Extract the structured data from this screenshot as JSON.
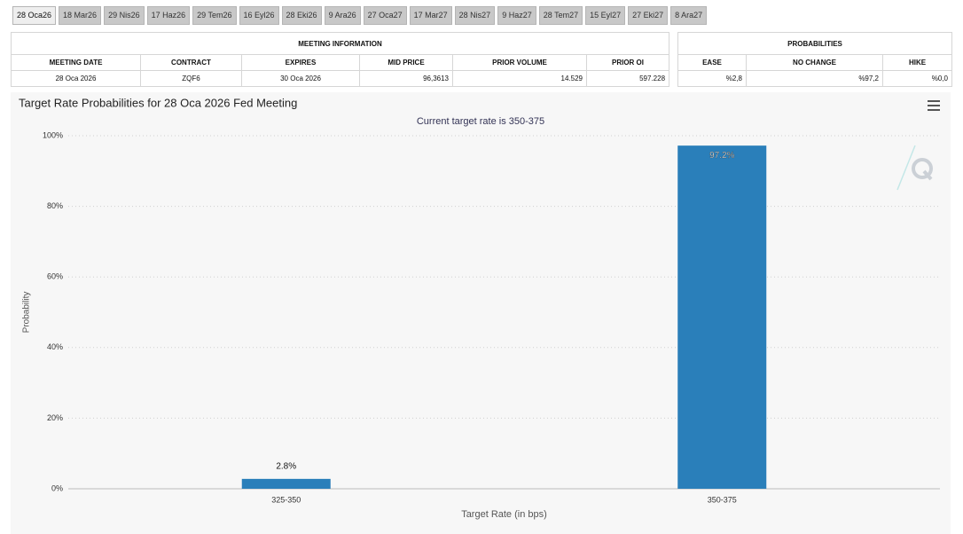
{
  "tabs": [
    "28 Oca26",
    "18 Mar26",
    "29 Nis26",
    "17 Haz26",
    "29 Tem26",
    "16 Eyl26",
    "28 Eki26",
    "9 Ara26",
    "27 Oca27",
    "17 Mar27",
    "28 Nis27",
    "9 Haz27",
    "28 Tem27",
    "15 Eyl27",
    "27 Eki27",
    "8 Ara27"
  ],
  "meeting_info": {
    "title": "MEETING INFORMATION",
    "columns": [
      "MEETING DATE",
      "CONTRACT",
      "EXPIRES",
      "MID PRICE",
      "PRIOR VOLUME",
      "PRIOR OI"
    ],
    "rows": [
      [
        "28 Oca 2026",
        "ZQF6",
        "30 Oca 2026",
        "96,3613",
        "14.529",
        "597.228"
      ]
    ]
  },
  "probabilities": {
    "title": "PROBABILITIES",
    "columns": [
      "EASE",
      "NO CHANGE",
      "HIKE"
    ],
    "rows": [
      [
        "%2,8",
        "%97,2",
        "%0,0"
      ]
    ]
  },
  "chart_data": {
    "type": "bar",
    "title": "Target Rate Probabilities for 28 Oca 2026 Fed Meeting",
    "subtitle": "Current target rate is 350-375",
    "x_label": "Target Rate (in bps)",
    "y_label": "Probability",
    "categories": [
      "325-350",
      "350-375"
    ],
    "values": [
      2.8,
      97.2
    ],
    "value_labels": [
      "2.8%",
      "97.2%"
    ],
    "color": "#2a7fba",
    "ylim": [
      0,
      100
    ],
    "yticks": [
      {
        "value": 0,
        "label": "0%"
      },
      {
        "value": 20,
        "label": "20%"
      },
      {
        "value": 40,
        "label": "40%"
      },
      {
        "value": 60,
        "label": "60%"
      },
      {
        "value": 80,
        "label": "80%"
      },
      {
        "value": 100,
        "label": "100%"
      }
    ],
    "grid": true
  }
}
